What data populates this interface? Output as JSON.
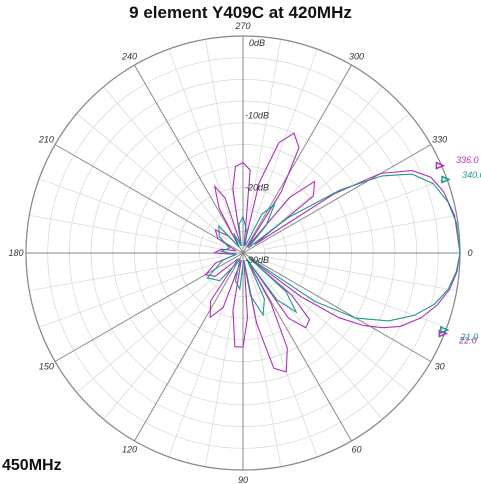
{
  "chart_data": {
    "type": "polar",
    "title": "9 element Y409C at 420MHz",
    "legend_visible_entry": "450MHz",
    "angle_ticks": [
      {
        "deg": 0,
        "label": "0"
      },
      {
        "deg": 30,
        "label": "30"
      },
      {
        "deg": 60,
        "label": "60"
      },
      {
        "deg": 90,
        "label": "90"
      },
      {
        "deg": 120,
        "label": "120"
      },
      {
        "deg": 150,
        "label": "150"
      },
      {
        "deg": 180,
        "label": "180"
      },
      {
        "deg": 210,
        "label": "210"
      },
      {
        "deg": 240,
        "label": "240"
      },
      {
        "deg": 270,
        "label": "270"
      },
      {
        "deg": 300,
        "label": "300"
      },
      {
        "deg": 330,
        "label": "330"
      }
    ],
    "radial_range_db": [
      -30,
      0
    ],
    "radial_labels": [
      {
        "db": 0,
        "label": "0dB"
      },
      {
        "db": -10,
        "label": "-10dB"
      },
      {
        "db": -20,
        "label": "-20dB"
      },
      {
        "db": -30,
        "label": "-30dB"
      }
    ],
    "grid": true,
    "series": [
      {
        "color": "#b030c0",
        "markers": [
          {
            "deg": 336,
            "label": "336.0"
          },
          {
            "deg": 22,
            "label": "22.0"
          }
        ],
        "points": [
          [
            0,
            0
          ],
          [
            5,
            -0.3
          ],
          [
            10,
            -1
          ],
          [
            15,
            -2.2
          ],
          [
            20,
            -3.8
          ],
          [
            25,
            -6
          ],
          [
            28,
            -8
          ],
          [
            31,
            -10.5
          ],
          [
            34,
            -14
          ],
          [
            37,
            -20
          ],
          [
            39,
            -29
          ],
          [
            41,
            -21
          ],
          [
            45,
            -17
          ],
          [
            50,
            -16.5
          ],
          [
            55,
            -19
          ],
          [
            58,
            -29
          ],
          [
            61,
            -22
          ],
          [
            65,
            -15.5
          ],
          [
            70,
            -12.5
          ],
          [
            75,
            -13.5
          ],
          [
            79,
            -20
          ],
          [
            82,
            -29
          ],
          [
            86,
            -21
          ],
          [
            90,
            -17
          ],
          [
            95,
            -17
          ],
          [
            100,
            -22
          ],
          [
            104,
            -29
          ],
          [
            110,
            -22
          ],
          [
            117,
            -20
          ],
          [
            124,
            -22
          ],
          [
            130,
            -29
          ],
          [
            140,
            -25
          ],
          [
            150,
            -24
          ],
          [
            160,
            -26
          ],
          [
            168,
            -29
          ],
          [
            180,
            -26
          ],
          [
            190,
            -27
          ],
          [
            198,
            -29
          ],
          [
            210,
            -26
          ],
          [
            220,
            -25
          ],
          [
            230,
            -27
          ],
          [
            236,
            -29
          ],
          [
            242,
            -23
          ],
          [
            247,
            -20
          ],
          [
            252,
            -22
          ],
          [
            256,
            -29
          ],
          [
            261,
            -21
          ],
          [
            265,
            -18
          ],
          [
            270,
            -17.5
          ],
          [
            275,
            -18.5
          ],
          [
            279,
            -29
          ],
          [
            283,
            -20
          ],
          [
            288,
            -14
          ],
          [
            293,
            -12
          ],
          [
            298,
            -13.5
          ],
          [
            302,
            -20
          ],
          [
            305,
            -29
          ],
          [
            310,
            -20
          ],
          [
            315,
            -16
          ],
          [
            321,
            -17.5
          ],
          [
            324,
            -28
          ],
          [
            327,
            -15
          ],
          [
            330,
            -8
          ],
          [
            334,
            -4
          ],
          [
            338,
            -2
          ],
          [
            343,
            -1
          ],
          [
            350,
            -0.3
          ],
          [
            360,
            0
          ]
        ]
      },
      {
        "color": "#20988a",
        "markers": [
          {
            "deg": 340,
            "label": "340.0"
          },
          {
            "deg": 21,
            "label": "21.0"
          }
        ],
        "points": [
          [
            0,
            0
          ],
          [
            5,
            -0.4
          ],
          [
            10,
            -1.2
          ],
          [
            15,
            -2.6
          ],
          [
            20,
            -4.8
          ],
          [
            25,
            -7.8
          ],
          [
            30,
            -12
          ],
          [
            34,
            -18
          ],
          [
            37,
            -29
          ],
          [
            42,
            -22
          ],
          [
            48,
            -19
          ],
          [
            54,
            -22
          ],
          [
            58,
            -29
          ],
          [
            65,
            -23
          ],
          [
            72,
            -21
          ],
          [
            80,
            -24
          ],
          [
            85,
            -29
          ],
          [
            95,
            -25
          ],
          [
            105,
            -26
          ],
          [
            115,
            -29
          ],
          [
            130,
            -25
          ],
          [
            145,
            -24
          ],
          [
            160,
            -27
          ],
          [
            170,
            -29
          ],
          [
            185,
            -27
          ],
          [
            200,
            -28
          ],
          [
            215,
            -26
          ],
          [
            228,
            -25
          ],
          [
            236,
            -29
          ],
          [
            245,
            -27
          ],
          [
            255,
            -29
          ],
          [
            262,
            -26
          ],
          [
            270,
            -25
          ],
          [
            280,
            -27
          ],
          [
            288,
            -29
          ],
          [
            296,
            -24
          ],
          [
            303,
            -22
          ],
          [
            310,
            -25
          ],
          [
            316,
            -29
          ],
          [
            322,
            -22
          ],
          [
            327,
            -14
          ],
          [
            331,
            -8
          ],
          [
            335,
            -4.2
          ],
          [
            340,
            -2
          ],
          [
            346,
            -0.8
          ],
          [
            352,
            -0.2
          ],
          [
            360,
            0
          ]
        ]
      }
    ]
  }
}
